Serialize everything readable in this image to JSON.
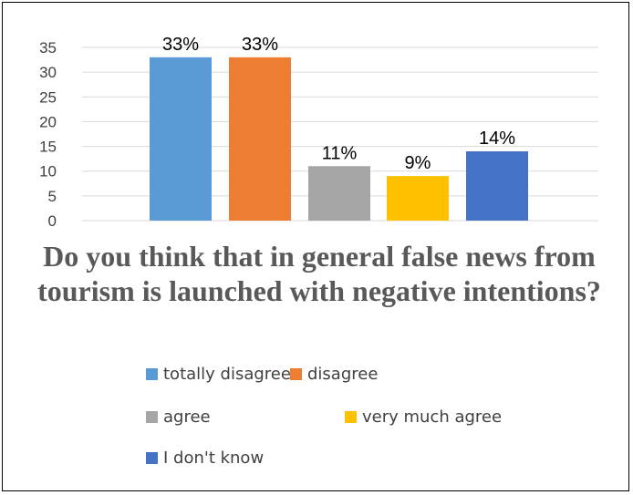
{
  "chart_data": {
    "type": "bar",
    "title": "Do you think that in general false news from tourism is launched with negative intentions?",
    "categories": [
      "totally disagree",
      "disagree",
      "agree",
      "very much agree",
      "I don't know"
    ],
    "values": [
      33,
      33,
      11,
      9,
      14
    ],
    "data_labels": [
      "33%",
      "33%",
      "11%",
      "9%",
      "14%"
    ],
    "colors": [
      "#5B9BD5",
      "#ED7D31",
      "#A5A5A5",
      "#FFC000",
      "#4472C4"
    ],
    "ylim": [
      0,
      35
    ],
    "yticks": [
      "0",
      "5",
      "10",
      "15",
      "20",
      "25",
      "30",
      "35"
    ],
    "grid": true,
    "legend": "bottom",
    "xlabel": "",
    "ylabel": ""
  }
}
